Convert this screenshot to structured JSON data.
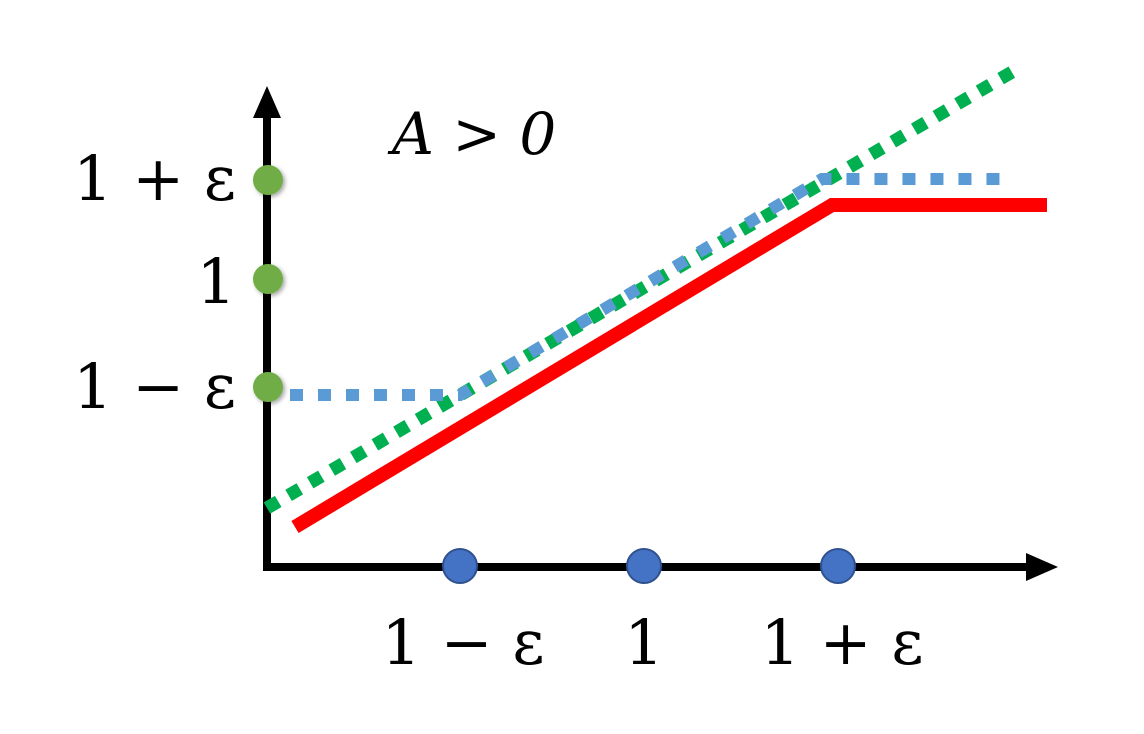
{
  "title": "A > 0",
  "y_axis": {
    "tick_labels": [
      "1 + ε",
      "1",
      "1 − ε"
    ]
  },
  "x_axis": {
    "tick_labels": [
      "1 − ε",
      "1",
      "1 + ε"
    ]
  },
  "colors": {
    "axis": "#000000",
    "clipped_objective": "#ff0000",
    "clipped_ratio": "#5b9bd5",
    "unclipped_objective": "#00b050",
    "y_markers": "#70ad47",
    "x_markers": "#4472c4"
  },
  "lines": [
    {
      "style": "solid",
      "color": "#ff0000"
    },
    {
      "style": "dotted",
      "color": "#5b9bd5"
    },
    {
      "style": "dotted",
      "color": "#00b050"
    }
  ]
}
